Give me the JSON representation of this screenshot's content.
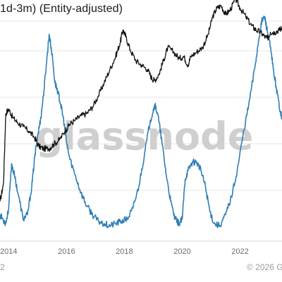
{
  "title": "1d-3m) (Entity-adjusted)",
  "watermark": "glassnode",
  "footer": {
    "left_text": "2",
    "copyright": "© 2026 G"
  },
  "colors": {
    "price_line": "#111111",
    "metric_line": "#2e7fb6",
    "grid": "#e6e6e6",
    "axis_text": "#6b6b6b",
    "watermark": "#cfcfcf"
  },
  "chart_data": {
    "type": "line",
    "title": "1d-3m) (Entity-adjusted)",
    "x_tick_labels": [
      "2014",
      "2016",
      "2018",
      "2020",
      "2022"
    ],
    "x_range": [
      2013.7,
      2023.45
    ],
    "y_range_norm": [
      0,
      1
    ],
    "log_scale_price": true,
    "grid": "horizontal",
    "series": [
      {
        "key": "price",
        "color": "#111111",
        "points": [
          [
            2013.7,
            0.18
          ],
          [
            2013.82,
            0.26
          ],
          [
            2013.9,
            0.58
          ],
          [
            2014.0,
            0.6
          ],
          [
            2014.15,
            0.56
          ],
          [
            2014.3,
            0.54
          ],
          [
            2014.5,
            0.52
          ],
          [
            2014.7,
            0.5
          ],
          [
            2014.9,
            0.47
          ],
          [
            2015.05,
            0.43
          ],
          [
            2015.2,
            0.42
          ],
          [
            2015.4,
            0.42
          ],
          [
            2015.55,
            0.44
          ],
          [
            2015.75,
            0.46
          ],
          [
            2015.95,
            0.5
          ],
          [
            2016.1,
            0.53
          ],
          [
            2016.3,
            0.55
          ],
          [
            2016.5,
            0.57
          ],
          [
            2016.7,
            0.58
          ],
          [
            2016.9,
            0.61
          ],
          [
            2017.1,
            0.66
          ],
          [
            2017.3,
            0.72
          ],
          [
            2017.5,
            0.78
          ],
          [
            2017.7,
            0.84
          ],
          [
            2017.85,
            0.9
          ],
          [
            2017.95,
            0.96
          ],
          [
            2018.05,
            0.93
          ],
          [
            2018.2,
            0.87
          ],
          [
            2018.4,
            0.82
          ],
          [
            2018.6,
            0.8
          ],
          [
            2018.8,
            0.78
          ],
          [
            2018.95,
            0.74
          ],
          [
            2019.05,
            0.73
          ],
          [
            2019.2,
            0.76
          ],
          [
            2019.35,
            0.82
          ],
          [
            2019.5,
            0.88
          ],
          [
            2019.7,
            0.86
          ],
          [
            2019.9,
            0.83
          ],
          [
            2020.05,
            0.84
          ],
          [
            2020.2,
            0.8
          ],
          [
            2020.3,
            0.84
          ],
          [
            2020.5,
            0.86
          ],
          [
            2020.7,
            0.88
          ],
          [
            2020.9,
            0.94
          ],
          [
            2021.05,
            1.02
          ],
          [
            2021.2,
            1.06
          ],
          [
            2021.35,
            1.07
          ],
          [
            2021.5,
            1.03
          ],
          [
            2021.65,
            1.05
          ],
          [
            2021.85,
            1.1
          ],
          [
            2022.0,
            1.06
          ],
          [
            2022.2,
            1.02
          ],
          [
            2022.4,
            0.98
          ],
          [
            2022.55,
            0.96
          ],
          [
            2022.7,
            0.95
          ],
          [
            2022.85,
            0.93
          ],
          [
            2022.95,
            0.92
          ],
          [
            2023.05,
            0.95
          ],
          [
            2023.2,
            0.95
          ],
          [
            2023.35,
            0.96
          ],
          [
            2023.45,
            0.97
          ]
        ]
      },
      {
        "key": "metric",
        "color": "#2e7fb6",
        "points": [
          [
            2013.7,
            0.12
          ],
          [
            2013.8,
            0.1
          ],
          [
            2013.9,
            0.08
          ],
          [
            2014.0,
            0.15
          ],
          [
            2014.1,
            0.35
          ],
          [
            2014.2,
            0.3
          ],
          [
            2014.35,
            0.2
          ],
          [
            2014.5,
            0.1
          ],
          [
            2014.65,
            0.12
          ],
          [
            2014.8,
            0.25
          ],
          [
            2014.9,
            0.38
          ],
          [
            2015.0,
            0.48
          ],
          [
            2015.1,
            0.55
          ],
          [
            2015.2,
            0.66
          ],
          [
            2015.3,
            0.8
          ],
          [
            2015.4,
            0.94
          ],
          [
            2015.5,
            0.85
          ],
          [
            2015.6,
            0.72
          ],
          [
            2015.7,
            0.68
          ],
          [
            2015.8,
            0.62
          ],
          [
            2015.9,
            0.55
          ],
          [
            2016.0,
            0.45
          ],
          [
            2016.1,
            0.38
          ],
          [
            2016.3,
            0.3
          ],
          [
            2016.5,
            0.22
          ],
          [
            2016.7,
            0.16
          ],
          [
            2016.9,
            0.12
          ],
          [
            2017.1,
            0.09
          ],
          [
            2017.3,
            0.08
          ],
          [
            2017.5,
            0.07
          ],
          [
            2017.7,
            0.08
          ],
          [
            2017.9,
            0.09
          ],
          [
            2018.1,
            0.1
          ],
          [
            2018.3,
            0.15
          ],
          [
            2018.5,
            0.25
          ],
          [
            2018.7,
            0.4
          ],
          [
            2018.9,
            0.55
          ],
          [
            2019.05,
            0.62
          ],
          [
            2019.15,
            0.58
          ],
          [
            2019.3,
            0.45
          ],
          [
            2019.45,
            0.3
          ],
          [
            2019.6,
            0.18
          ],
          [
            2019.75,
            0.1
          ],
          [
            2019.9,
            0.08
          ],
          [
            2020.0,
            0.1
          ],
          [
            2020.1,
            0.28
          ],
          [
            2020.2,
            0.32
          ],
          [
            2020.35,
            0.36
          ],
          [
            2020.5,
            0.36
          ],
          [
            2020.65,
            0.32
          ],
          [
            2020.8,
            0.25
          ],
          [
            2020.95,
            0.14
          ],
          [
            2021.1,
            0.08
          ],
          [
            2021.3,
            0.07
          ],
          [
            2021.5,
            0.12
          ],
          [
            2021.7,
            0.2
          ],
          [
            2021.9,
            0.32
          ],
          [
            2022.1,
            0.48
          ],
          [
            2022.3,
            0.62
          ],
          [
            2022.5,
            0.78
          ],
          [
            2022.65,
            0.92
          ],
          [
            2022.75,
            1.0
          ],
          [
            2022.85,
            1.02
          ],
          [
            2022.95,
            0.95
          ],
          [
            2023.05,
            0.88
          ],
          [
            2023.15,
            0.78
          ],
          [
            2023.25,
            0.7
          ],
          [
            2023.35,
            0.62
          ],
          [
            2023.45,
            0.56
          ]
        ]
      }
    ]
  }
}
